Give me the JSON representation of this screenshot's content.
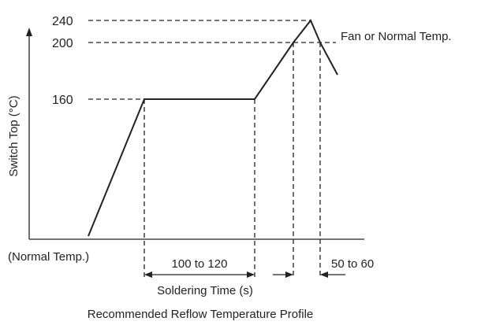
{
  "chart_data": {
    "type": "line",
    "title": "Recommended Reflow Temperature Profile",
    "ylabel": "Switch Top (°C)",
    "xlabel": "Soldering Time (s)",
    "y_ticks": [
      {
        "value": 240,
        "label": "240"
      },
      {
        "value": 200,
        "label": "200"
      },
      {
        "value": 160,
        "label": "160"
      }
    ],
    "origin_label": "(Normal Temp.)",
    "series": [
      {
        "points": [
          {
            "x": 0,
            "y": 25
          },
          {
            "x": 30,
            "y": 160
          },
          {
            "x": 140,
            "y": 160
          },
          {
            "x": 162,
            "y": 200
          },
          {
            "x": 183,
            "y": 240
          },
          {
            "x": 190,
            "y": 200
          },
          {
            "x": 200,
            "y": 180
          }
        ]
      }
    ],
    "annotations": {
      "cooling_label": "Fan or Normal Temp.",
      "preheat_span_label": "100 to 120",
      "peak_span_label": "50 to 60"
    }
  }
}
